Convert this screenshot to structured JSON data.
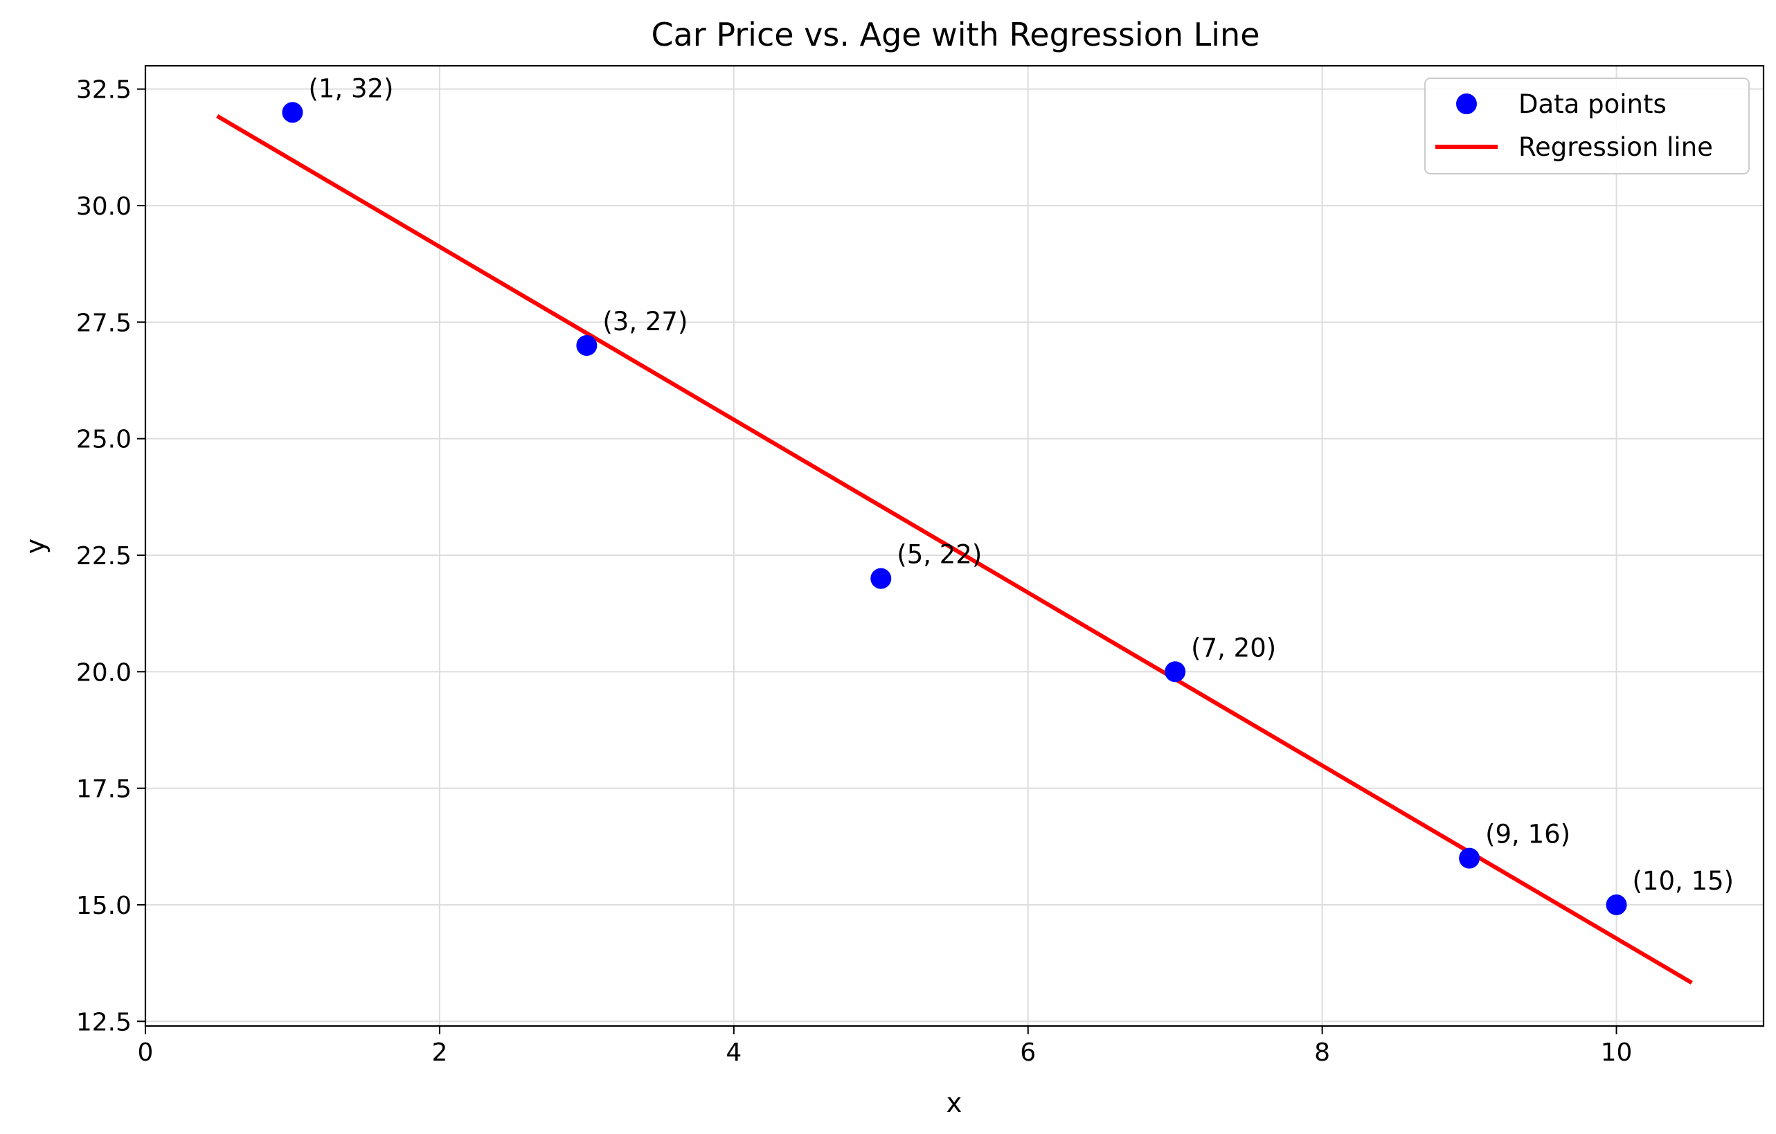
{
  "chart_data": {
    "type": "scatter",
    "title": "Car Price vs. Age with Regression Line",
    "xlabel": "x",
    "ylabel": "y",
    "xlim": [
      0,
      11
    ],
    "ylim": [
      12.4,
      33
    ],
    "xticks": [
      0,
      2,
      4,
      6,
      8,
      10
    ],
    "xtick_labels": [
      "0",
      "2",
      "4",
      "6",
      "8",
      "10"
    ],
    "yticks": [
      12.5,
      15.0,
      17.5,
      20.0,
      22.5,
      25.0,
      27.5,
      30.0,
      32.5
    ],
    "ytick_labels": [
      "12.5",
      "15.0",
      "17.5",
      "20.0",
      "22.5",
      "25.0",
      "27.5",
      "30.0",
      "32.5"
    ],
    "grid": true,
    "legend_position": "top-right",
    "series": [
      {
        "name": "Data points",
        "kind": "scatter",
        "color": "#0000ff",
        "points": [
          {
            "x": 1,
            "y": 32,
            "label": "(1, 32)"
          },
          {
            "x": 3,
            "y": 27,
            "label": "(3, 27)"
          },
          {
            "x": 5,
            "y": 22,
            "label": "(5, 22)"
          },
          {
            "x": 7,
            "y": 20,
            "label": "(7, 20)"
          },
          {
            "x": 9,
            "y": 16,
            "label": "(9, 16)"
          },
          {
            "x": 10,
            "y": 15,
            "label": "(10, 15)"
          }
        ]
      },
      {
        "name": "Regression line",
        "kind": "line",
        "color": "#ff0000",
        "x": [
          0.5,
          10.5
        ],
        "y": [
          31.9,
          13.35
        ]
      }
    ]
  }
}
